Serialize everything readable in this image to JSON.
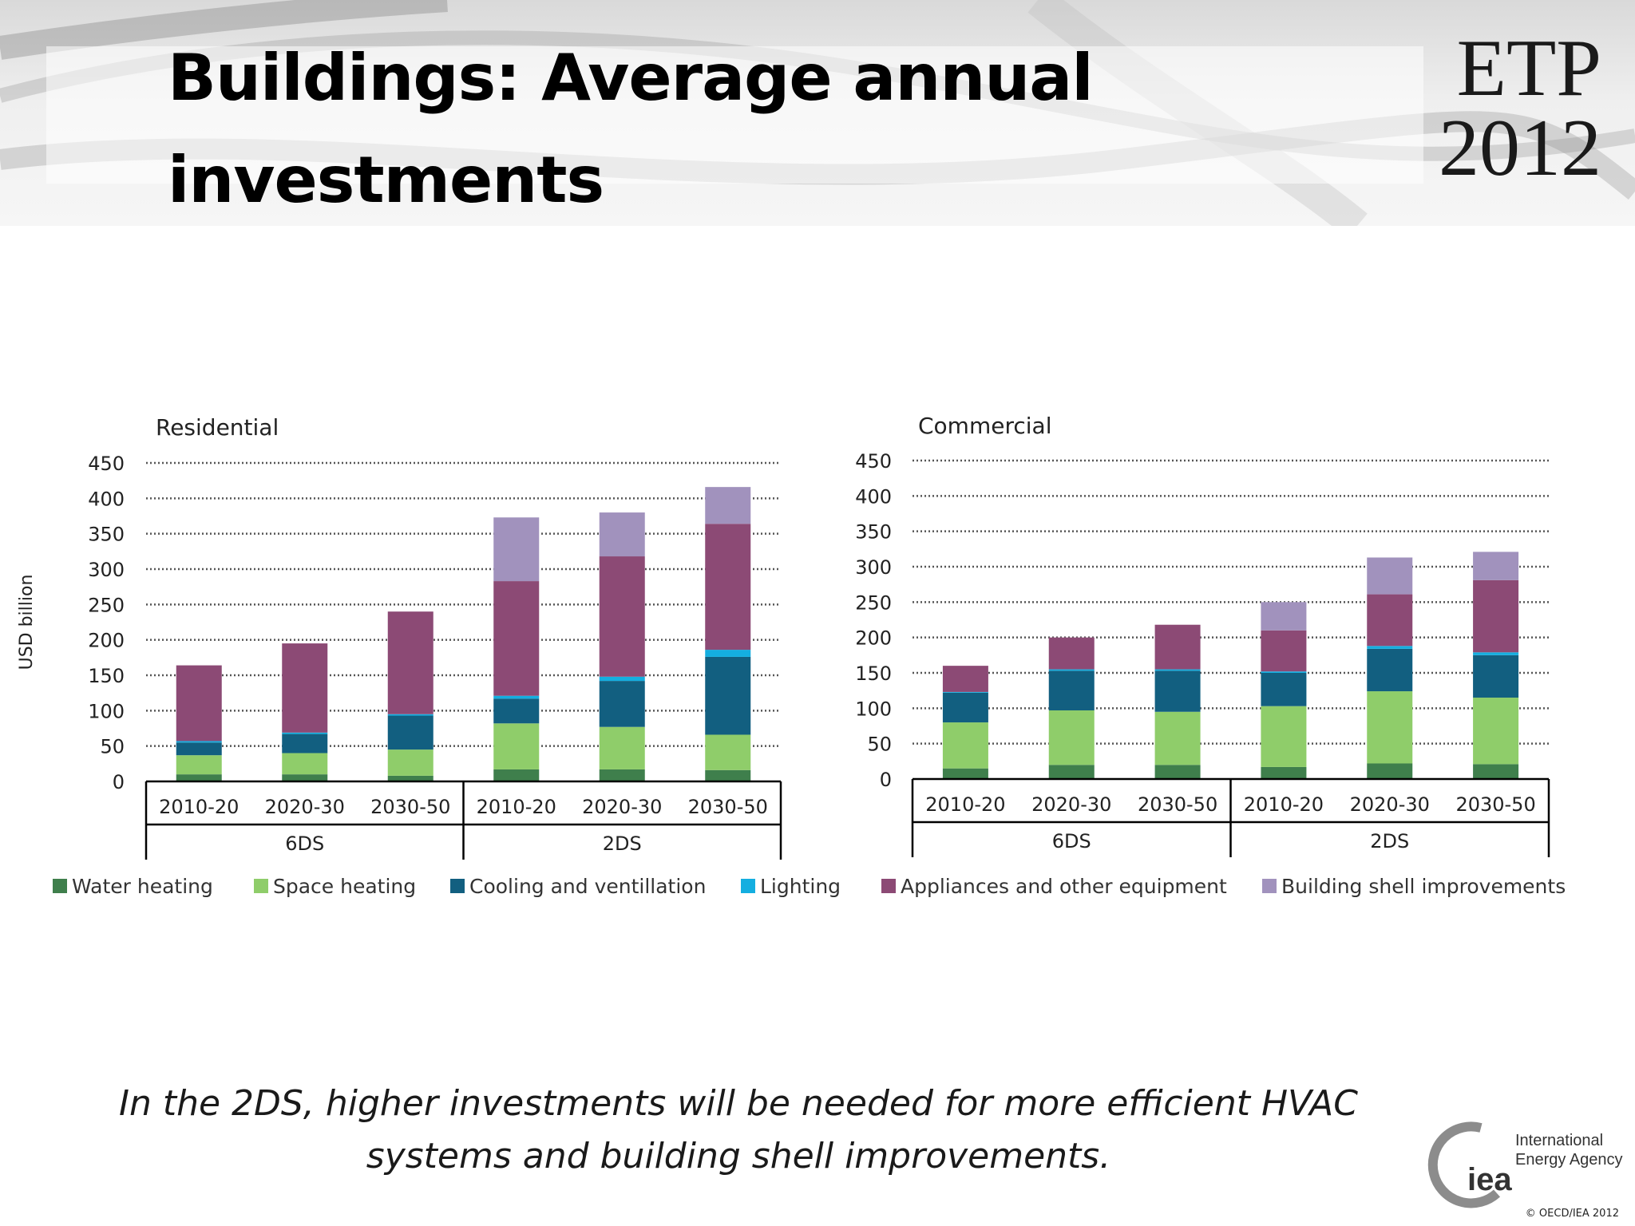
{
  "header": {
    "title": "Buildings: Average annual investments",
    "logo_line1": "ETP",
    "logo_line2": "2012"
  },
  "colors": {
    "water_heating": "#3f7f4c",
    "space_heating": "#8fcd6a",
    "cooling": "#125f80",
    "lighting": "#14aee0",
    "appliances": "#8c4a75",
    "shell": "#a192bd",
    "axis": "#000000",
    "grid": "#555555"
  },
  "chart_data": [
    {
      "type": "bar",
      "stacked": true,
      "title": "Residential",
      "ylabel": "USD billion",
      "ylim": [
        0,
        450
      ],
      "yticks": [
        0,
        50,
        100,
        150,
        200,
        250,
        300,
        350,
        400,
        450
      ],
      "grid": true,
      "categories": [
        "2010-20",
        "2020-30",
        "2030-50",
        "2010-20",
        "2020-30",
        "2030-50"
      ],
      "groups": [
        {
          "label": "6DS",
          "count": 3
        },
        {
          "label": "2DS",
          "count": 3
        }
      ],
      "series": [
        {
          "name": "Water heating",
          "values": [
            10,
            10,
            8,
            17,
            17,
            16
          ]
        },
        {
          "name": "Space heating",
          "values": [
            27,
            30,
            37,
            65,
            60,
            50
          ]
        },
        {
          "name": "Cooling and ventillation",
          "values": [
            18,
            27,
            48,
            35,
            65,
            110
          ]
        },
        {
          "name": "Lighting",
          "values": [
            2,
            2,
            2,
            4,
            6,
            10
          ]
        },
        {
          "name": "Appliances and other equipment",
          "values": [
            107,
            126,
            145,
            162,
            170,
            178
          ]
        },
        {
          "name": "Building shell improvements",
          "values": [
            0,
            0,
            0,
            90,
            62,
            52
          ]
        }
      ]
    },
    {
      "type": "bar",
      "stacked": true,
      "title": "Commercial",
      "ylim": [
        0,
        450
      ],
      "yticks": [
        0,
        50,
        100,
        150,
        200,
        250,
        300,
        350,
        400,
        450
      ],
      "grid": true,
      "categories": [
        "2010-20",
        "2020-30",
        "2030-50",
        "2010-20",
        "2020-30",
        "2030-50"
      ],
      "groups": [
        {
          "label": "6DS",
          "count": 3
        },
        {
          "label": "2DS",
          "count": 3
        }
      ],
      "series": [
        {
          "name": "Water heating",
          "values": [
            15,
            20,
            20,
            17,
            22,
            21
          ]
        },
        {
          "name": "Space heating",
          "values": [
            65,
            77,
            75,
            86,
            102,
            94
          ]
        },
        {
          "name": "Cooling and ventillation",
          "values": [
            42,
            56,
            58,
            47,
            60,
            60
          ]
        },
        {
          "name": "Lighting",
          "values": [
            1,
            2,
            2,
            2,
            4,
            4
          ]
        },
        {
          "name": "Appliances and other equipment",
          "values": [
            37,
            45,
            63,
            58,
            73,
            102
          ]
        },
        {
          "name": "Building shell improvements",
          "values": [
            0,
            0,
            0,
            40,
            52,
            40
          ]
        }
      ]
    }
  ],
  "legend": [
    {
      "label": "Water heating",
      "color_key": "water_heating"
    },
    {
      "label": "Space heating",
      "color_key": "space_heating"
    },
    {
      "label": "Cooling and ventillation",
      "color_key": "cooling"
    },
    {
      "label": "Lighting",
      "color_key": "lighting"
    },
    {
      "label": "Appliances and other equipment",
      "color_key": "appliances"
    },
    {
      "label": "Building shell improvements",
      "color_key": "shell"
    }
  ],
  "caption": "In the 2DS, higher investments will be needed for more efficient HVAC systems and building shell improvements.",
  "footer": {
    "iea_mark": "iea",
    "iea_name_line1": "International",
    "iea_name_line2": "Energy Agency",
    "copyright": "© OECD/IEA 2012"
  }
}
